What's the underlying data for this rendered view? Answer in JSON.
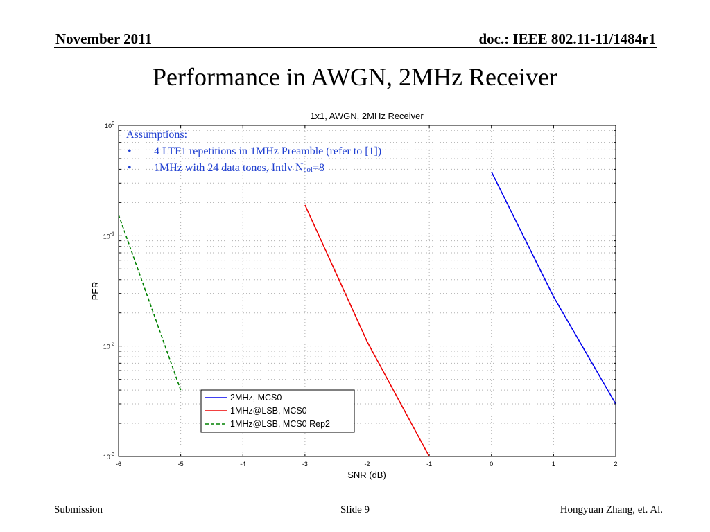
{
  "header": {
    "date": "November 2011",
    "doc": "doc.: IEEE 802.11-11/1484r1"
  },
  "slide_title": "Performance in AWGN, 2MHz Receiver",
  "assumptions": {
    "heading": "Assumptions:",
    "bullet_symbol": "•",
    "items": [
      {
        "text": "4 LTF1 repetitions in 1MHz Preamble (refer to [1])"
      },
      {
        "text": "1MHz with 24 data tones, Intlv N",
        "sub": "col",
        "suffix": "=8"
      }
    ]
  },
  "chart_data": {
    "type": "line",
    "title": "1x1, AWGN, 2MHz Receiver",
    "xlabel": "SNR (dB)",
    "ylabel": "PER",
    "xlim": [
      -6,
      2
    ],
    "ylim": [
      0.001,
      1
    ],
    "yscale": "log",
    "grid": true,
    "legend_position": "bottom-center",
    "x_ticks": [
      "-6",
      "-5",
      "-4",
      "-3",
      "-2",
      "-1",
      "0",
      "1",
      "2"
    ],
    "y_ticks": [
      {
        "base": "10",
        "exp": "0"
      },
      {
        "base": "10",
        "exp": "-1"
      },
      {
        "base": "10",
        "exp": "-2"
      },
      {
        "base": "10",
        "exp": "-3"
      }
    ],
    "series": [
      {
        "name": "2MHz, MCS0",
        "color": "#0000ee",
        "dash": "solid",
        "x": [
          0,
          1,
          2
        ],
        "y": [
          0.38,
          0.028,
          0.003
        ]
      },
      {
        "name": "1MHz@LSB, MCS0",
        "color": "#ee0000",
        "dash": "solid",
        "x": [
          -3,
          -2,
          -1
        ],
        "y": [
          0.19,
          0.011,
          0.001
        ]
      },
      {
        "name": "1MHz@LSB, MCS0 Rep2",
        "color": "#008000",
        "dash": "dashed",
        "x": [
          -6,
          -5
        ],
        "y": [
          0.155,
          0.004
        ]
      }
    ]
  },
  "footer": {
    "left": "Submission",
    "center": "Slide 9",
    "right": "Hongyuan Zhang, et. Al."
  }
}
